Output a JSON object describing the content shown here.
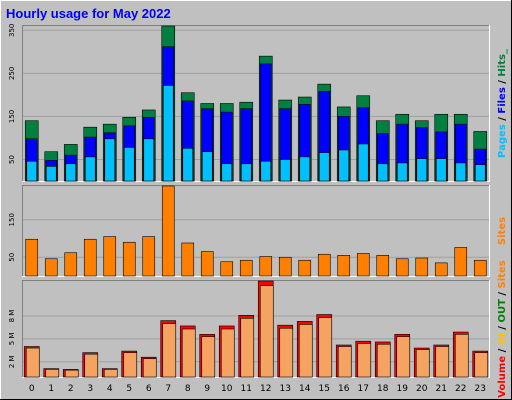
{
  "title": "Hourly usage for May 2022",
  "colors": {
    "background": "#c0c0c0",
    "title": "#0000ff",
    "pages": "#00c0ff",
    "files": "#0000ff",
    "hits": "#008040",
    "sites": "#ff8000",
    "volume": "#ff0000",
    "in": "#ffc000",
    "out": "#008000"
  },
  "chart_data": [
    {
      "type": "bar",
      "title": "Hourly usage for May 2022",
      "categories": [
        "0",
        "1",
        "2",
        "3",
        "4",
        "5",
        "6",
        "7",
        "8",
        "9",
        "10",
        "11",
        "12",
        "13",
        "14",
        "15",
        "16",
        "17",
        "18",
        "19",
        "20",
        "21",
        "22",
        "23"
      ],
      "ylim": [
        0,
        360
      ],
      "yticks": [
        {
          "value": 50,
          "label": "50"
        },
        {
          "value": 150,
          "label": "150"
        },
        {
          "value": 250,
          "label": "250"
        },
        {
          "value": 350,
          "label": "350"
        }
      ],
      "legend_parts": [
        {
          "text": "Pages",
          "color": "#00c0ff"
        },
        {
          "text": " / ",
          "color": "#000000"
        },
        {
          "text": "Files",
          "color": "#0000ff"
        },
        {
          "text": " / ",
          "color": "#000000"
        },
        {
          "text": "Hits_",
          "color": "#008040"
        }
      ],
      "series": [
        {
          "name": "Hits",
          "values": [
            140,
            68,
            85,
            125,
            132,
            148,
            165,
            360,
            205,
            180,
            180,
            183,
            290,
            188,
            195,
            225,
            172,
            198,
            140,
            155,
            140,
            155,
            155,
            115
          ]
        },
        {
          "name": "Files",
          "values": [
            98,
            48,
            60,
            102,
            112,
            128,
            148,
            312,
            186,
            168,
            160,
            168,
            272,
            168,
            178,
            208,
            150,
            170,
            110,
            132,
            124,
            114,
            132,
            74
          ]
        },
        {
          "name": "Pages",
          "values": [
            46,
            34,
            40,
            56,
            98,
            78,
            98,
            222,
            76,
            68,
            40,
            40,
            46,
            50,
            56,
            66,
            72,
            86,
            40,
            42,
            52,
            52,
            42,
            38
          ]
        }
      ]
    },
    {
      "type": "bar",
      "categories": [
        "0",
        "1",
        "2",
        "3",
        "4",
        "5",
        "6",
        "7",
        "8",
        "9",
        "10",
        "11",
        "12",
        "13",
        "14",
        "15",
        "16",
        "17",
        "18",
        "19",
        "20",
        "21",
        "22",
        "23"
      ],
      "ylim": [
        0,
        240
      ],
      "yticks": [
        {
          "value": 50,
          "label": "50"
        },
        {
          "value": 150,
          "label": "150"
        }
      ],
      "legend_parts": [
        {
          "text": "Sites",
          "color": "#ff8000"
        }
      ],
      "series": [
        {
          "name": "Sites",
          "values": [
            98,
            46,
            62,
            98,
            105,
            90,
            105,
            240,
            88,
            65,
            38,
            42,
            52,
            50,
            42,
            58,
            55,
            60,
            55,
            46,
            48,
            35,
            76,
            42
          ]
        }
      ]
    },
    {
      "type": "bar",
      "categories": [
        "0",
        "1",
        "2",
        "3",
        "4",
        "5",
        "6",
        "7",
        "8",
        "9",
        "10",
        "11",
        "12",
        "13",
        "14",
        "15",
        "16",
        "17",
        "18",
        "19",
        "20",
        "21",
        "22",
        "23"
      ],
      "ylim": [
        0,
        12.6
      ],
      "yticks": [
        {
          "value": 2,
          "label": "2 M"
        },
        {
          "value": 5,
          "label": "5 M"
        },
        {
          "value": 8,
          "label": "8 M"
        }
      ],
      "legend_parts": [
        {
          "text": "Volume",
          "color": "#ff0000"
        },
        {
          "text": " / ",
          "color": "#000000"
        },
        {
          "text": "IN",
          "color": "#ffc000"
        },
        {
          "text": " / ",
          "color": "#000000"
        },
        {
          "text": "OUT",
          "color": "#008000"
        },
        {
          "text": " / ",
          "color": "#000000"
        },
        {
          "text": "Sites",
          "color": "#ff8000"
        }
      ],
      "series": [
        {
          "name": "Volume",
          "values": [
            4.0,
            1.1,
            1.0,
            3.2,
            1.1,
            3.4,
            2.6,
            7.4,
            6.7,
            5.6,
            6.7,
            8.1,
            12.6,
            6.8,
            7.3,
            8.2,
            4.2,
            4.7,
            4.6,
            5.6,
            3.8,
            4.2,
            5.9,
            3.4
          ]
        },
        {
          "name": "IN",
          "values": [
            3.8,
            1.0,
            0.9,
            3.0,
            1.0,
            3.2,
            2.4,
            7.0,
            6.3,
            5.3,
            6.3,
            7.7,
            12.0,
            6.4,
            6.9,
            7.8,
            4.0,
            4.4,
            4.3,
            5.3,
            3.6,
            4.0,
            5.6,
            3.2
          ]
        }
      ]
    }
  ]
}
